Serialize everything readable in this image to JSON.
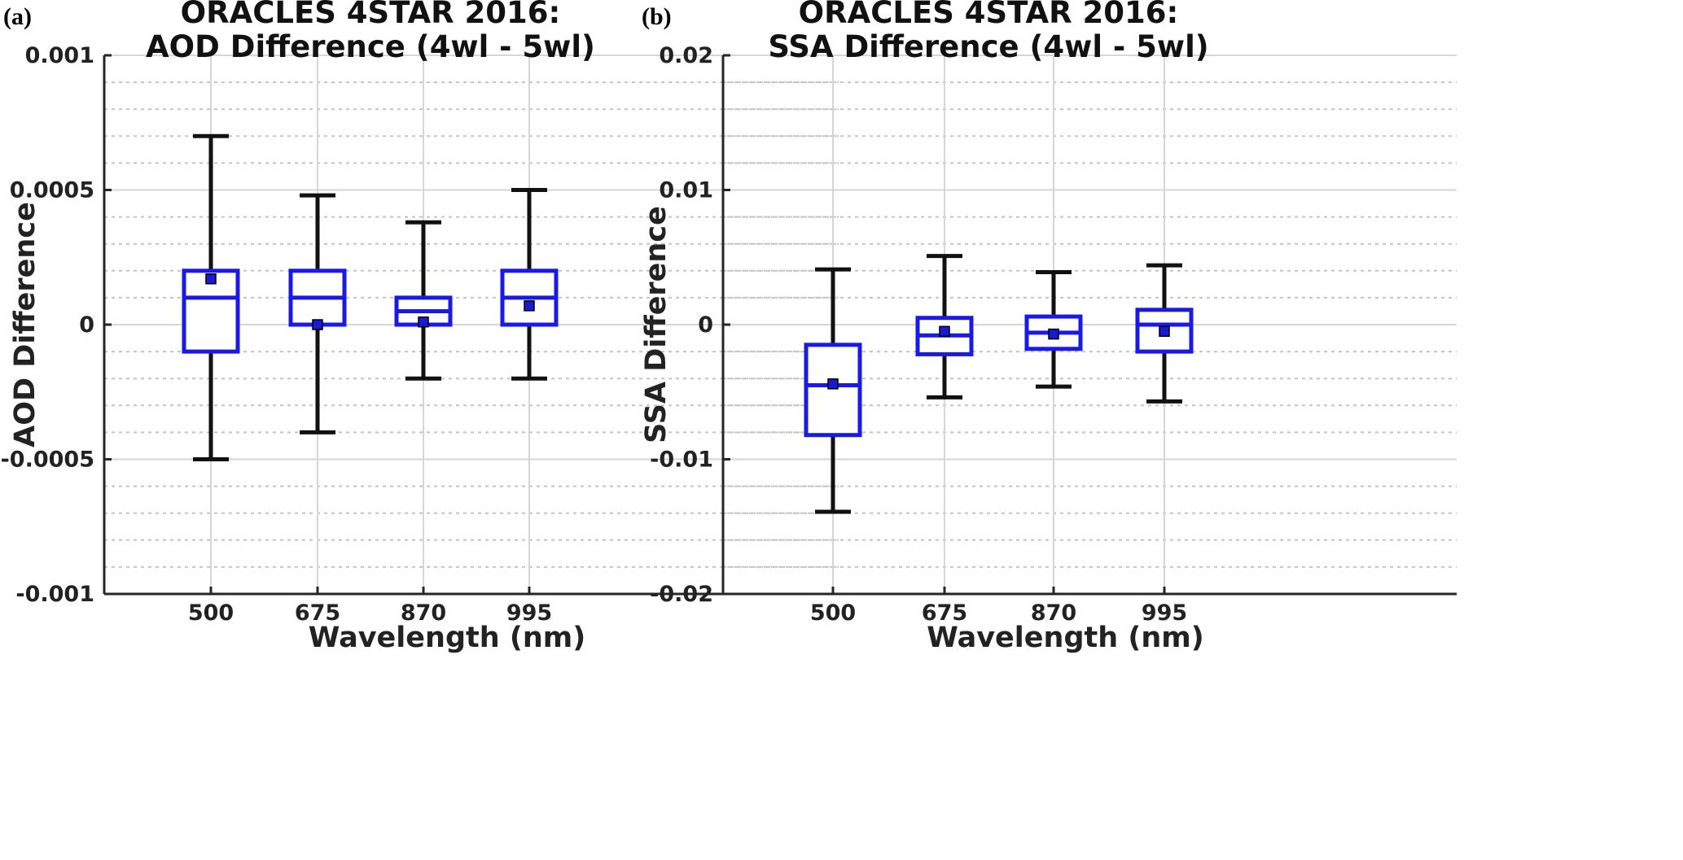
{
  "chart_data": [
    {
      "type": "box",
      "panel_label": "(a)",
      "title": [
        "ORACLES 4STAR 2016:",
        "AOD Difference (4wl - 5wl)"
      ],
      "xlabel": "Wavelength (nm)",
      "ylabel": "AOD Difference",
      "categories": [
        "500",
        "675",
        "870",
        "995"
      ],
      "ylim": [
        -0.001,
        0.001
      ],
      "yticks": [
        -0.001,
        -0.0005,
        0,
        0.0005,
        0.001
      ],
      "ytick_labels": [
        "-0.001",
        "-0.0005",
        "0",
        "0.0005",
        "0.001"
      ],
      "minor_grid_step": 0.0001,
      "boxes": [
        {
          "whisker_low": -0.0005,
          "q1": -0.0001,
          "median": 0.0001,
          "q3": 0.0002,
          "whisker_high": 0.0007,
          "mean": 0.00017
        },
        {
          "whisker_low": -0.0004,
          "q1": 0.0,
          "median": 0.0001,
          "q3": 0.0002,
          "whisker_high": 0.00048,
          "mean": 0.0
        },
        {
          "whisker_low": -0.0002,
          "q1": 0.0,
          "median": 5e-05,
          "q3": 0.0001,
          "whisker_high": 0.00038,
          "mean": 1e-05
        },
        {
          "whisker_low": -0.0002,
          "q1": 0.0,
          "median": 0.0001,
          "q3": 0.0002,
          "whisker_high": 0.0005,
          "mean": 7e-05
        }
      ],
      "colors": {
        "box": "#1a1ae6",
        "whisker": "#111111",
        "mean_fill": "#1a1ad0",
        "mean_edge": "#000000"
      }
    },
    {
      "type": "box",
      "panel_label": "(b)",
      "title": [
        "ORACLES 4STAR 2016:",
        "SSA Difference (4wl - 5wl)"
      ],
      "xlabel": "Wavelength (nm)",
      "ylabel": "SSA Difference",
      "categories": [
        "500",
        "675",
        "870",
        "995"
      ],
      "ylim": [
        -0.02,
        0.02
      ],
      "yticks": [
        -0.02,
        -0.01,
        0,
        0.01,
        0.02
      ],
      "ytick_labels": [
        "-0.02",
        "-0.01",
        "0",
        "0.01",
        "0.02"
      ],
      "minor_grid_step": 0.002,
      "boxes": [
        {
          "whisker_low": -0.0139,
          "q1": -0.0082,
          "median": -0.0045,
          "q3": -0.0015,
          "whisker_high": 0.0041,
          "mean": -0.0044
        },
        {
          "whisker_low": -0.0054,
          "q1": -0.0022,
          "median": -0.0008,
          "q3": 0.0005,
          "whisker_high": 0.0051,
          "mean": -0.0005
        },
        {
          "whisker_low": -0.0046,
          "q1": -0.0018,
          "median": -0.0006,
          "q3": 0.0006,
          "whisker_high": 0.0039,
          "mean": -0.0007
        },
        {
          "whisker_low": -0.0057,
          "q1": -0.002,
          "median": 0.0,
          "q3": 0.0011,
          "whisker_high": 0.0044,
          "mean": -0.0005
        }
      ],
      "colors": {
        "box": "#1a1ae6",
        "whisker": "#111111",
        "mean_fill": "#1a1ad0",
        "mean_edge": "#000000"
      }
    }
  ]
}
